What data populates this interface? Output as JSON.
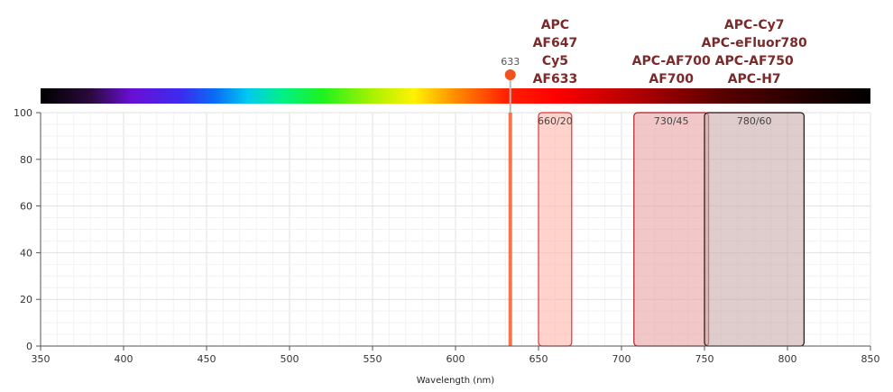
{
  "chart_data": {
    "type": "bar",
    "xlabel": "Wavelength (nm)",
    "ylabel": "",
    "xlim": [
      350,
      850
    ],
    "ylim": [
      0,
      100
    ],
    "x_ticks": [
      "350",
      "400",
      "450",
      "500",
      "550",
      "600",
      "650",
      "700",
      "750",
      "800",
      "850"
    ],
    "y_ticks": [
      "0",
      "20",
      "40",
      "60",
      "80",
      "100"
    ],
    "grid": true,
    "laser": {
      "wavelength": 633,
      "label": "633",
      "color": "#f0521e"
    },
    "filters": [
      {
        "label": "660/20",
        "center": 660,
        "width": 20,
        "value": 100,
        "fill": "#ffb6a8",
        "stroke": "#e03838"
      },
      {
        "label": "730/45",
        "center": 730,
        "width": 45,
        "value": 100,
        "fill": "#e9a2a2",
        "stroke": "#b31e2a"
      },
      {
        "label": "780/60",
        "center": 780,
        "width": 60,
        "value": 100,
        "fill": "#c9abab",
        "stroke": "#2a1212"
      }
    ],
    "fluorochrome_groups": [
      {
        "center": 660,
        "names": [
          "APC",
          "AF647",
          "Cy5",
          "AF633"
        ]
      },
      {
        "center": 730,
        "names": [
          "APC-AF700",
          "AF700"
        ]
      },
      {
        "center": 780,
        "names": [
          "APC-Cy7",
          "APC-eFluor780",
          "APC-AF750",
          "APC-H7"
        ]
      }
    ]
  }
}
